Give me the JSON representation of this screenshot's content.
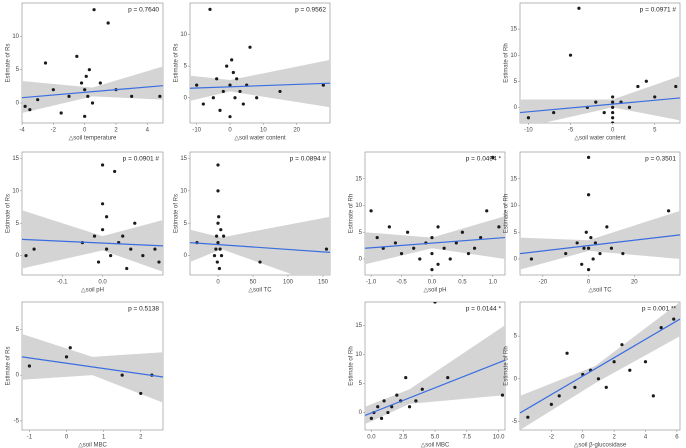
{
  "chart_data": [
    {
      "type": "scatter",
      "title": "p = 0.7640",
      "xlabel": "△soil temperature",
      "ylabel": "Estimate of Rs",
      "xlim": [
        -4,
        5
      ],
      "ylim": [
        -3,
        15
      ],
      "xticks": [
        -4,
        -2,
        0,
        2,
        4
      ],
      "yticks": [
        0,
        5,
        10
      ],
      "x": [
        -3.8,
        -3.5,
        -3,
        -2.5,
        -2,
        -1.5,
        -1,
        -0.5,
        -0.2,
        0,
        0,
        0.1,
        0.2,
        0.3,
        0.5,
        0.6,
        1,
        1.5,
        2,
        3,
        4.8
      ],
      "y": [
        -0.5,
        -1,
        0.5,
        6,
        2,
        -1.5,
        1,
        7,
        3,
        2,
        -2,
        4,
        1,
        5,
        0,
        14,
        3,
        12,
        2,
        1,
        1
      ],
      "fit": {
        "x": [
          -4,
          5
        ],
        "y": [
          0.8,
          2.6
        ]
      },
      "band": {
        "x": [
          -4,
          0.5,
          5
        ],
        "lower": [
          -1.5,
          1,
          0.5
        ],
        "upper": [
          3.3,
          2.3,
          5.5
        ]
      },
      "color": "#3a6ee0",
      "point_color": "#1a1a1a",
      "band_color": "#d4d4d4"
    },
    {
      "type": "scatter",
      "title": "p = 0.9562",
      "xlabel": "△soil water content",
      "ylabel": "Estimate of Rs",
      "xlim": [
        -12,
        30
      ],
      "ylim": [
        -4,
        15
      ],
      "xticks": [
        -10,
        0,
        10,
        20
      ],
      "yticks": [
        0,
        5,
        10
      ],
      "x": [
        -10,
        -8,
        -6,
        -5,
        -4,
        -3,
        -2,
        -1,
        0,
        0,
        0.5,
        1,
        1.5,
        2,
        3,
        4,
        5,
        6,
        8,
        15,
        28
      ],
      "y": [
        2,
        -1,
        14,
        0,
        3,
        -2,
        1,
        5,
        2,
        -3,
        6,
        4,
        0,
        3,
        1,
        -1,
        2,
        8,
        0,
        1,
        2
      ],
      "fit": {
        "x": [
          -12,
          30
        ],
        "y": [
          1.5,
          2.3
        ]
      },
      "band": {
        "x": [
          -12,
          0,
          30
        ],
        "lower": [
          -0.5,
          1,
          -1.5
        ],
        "upper": [
          3.5,
          2.8,
          6
        ]
      },
      "color": "#3a6ee0",
      "point_color": "#1a1a1a",
      "band_color": "#d4d4d4"
    },
    {
      "type": "scatter",
      "title": "p = 0.0971 #",
      "xlabel": "△soil water content",
      "ylabel": "Estimate of Rh",
      "xlim": [
        -11,
        8
      ],
      "ylim": [
        -3,
        20
      ],
      "xticks": [
        -10,
        -5,
        0,
        5
      ],
      "yticks": [
        0,
        5,
        10,
        15
      ],
      "x": [
        -10,
        -7,
        -5,
        -4,
        -3,
        -2,
        -1,
        0,
        0,
        0,
        0,
        0,
        0,
        1,
        2,
        3,
        4,
        5,
        7.5
      ],
      "y": [
        -2,
        -1,
        10,
        19,
        0,
        1,
        -1,
        2,
        1,
        0,
        -1,
        -2,
        -3,
        1,
        0,
        4,
        5,
        2,
        4
      ],
      "fit": {
        "x": [
          -11,
          8
        ],
        "y": [
          -1,
          1.8
        ]
      },
      "band": {
        "x": [
          -11,
          0,
          8
        ],
        "lower": [
          -4,
          0,
          -2.5
        ],
        "upper": [
          1.5,
          1.5,
          6
        ]
      },
      "color": "#3a6ee0",
      "point_color": "#1a1a1a",
      "band_color": "#d4d4d4"
    },
    {
      "type": "scatter",
      "title": "p = 0.0901 #",
      "xlabel": "△soil pH",
      "ylabel": "Estimate of Rs",
      "xlim": [
        -0.2,
        0.15
      ],
      "ylim": [
        -3,
        16
      ],
      "xticks": [
        -0.1,
        {
          "value": 0,
          "label": "0.0"
        }
      ],
      "yticks": [
        0,
        5,
        10,
        15
      ],
      "x": [
        -0.19,
        -0.17,
        -0.05,
        -0.02,
        -0.01,
        0,
        0,
        0,
        0.01,
        0.01,
        0.02,
        0.03,
        0.04,
        0.05,
        0.06,
        0.07,
        0.08,
        0.1,
        0.13,
        0.14
      ],
      "y": [
        0,
        1,
        2,
        3,
        -1,
        14,
        8,
        4,
        1,
        6,
        0,
        13,
        2,
        3,
        -2,
        1,
        5,
        0,
        1,
        -1
      ],
      "fit": {
        "x": [
          -0.2,
          0.15
        ],
        "y": [
          2.5,
          1.5
        ]
      },
      "band": {
        "x": [
          -0.2,
          0,
          0.15
        ],
        "lower": [
          -2,
          0.8,
          -2.5
        ],
        "upper": [
          7,
          3,
          5.5
        ]
      },
      "color": "#3a6ee0",
      "point_color": "#1a1a1a",
      "band_color": "#d4d4d4"
    },
    {
      "type": "scatter",
      "title": "p = 0.0894 #",
      "xlabel": "△soil TC",
      "ylabel": "Estimate of Rs",
      "xlim": [
        -40,
        160
      ],
      "ylim": [
        -3,
        16
      ],
      "xticks": [
        0,
        50,
        100,
        150
      ],
      "yticks": [
        0,
        5,
        10,
        15
      ],
      "x": [
        -30,
        -5,
        -3,
        -2,
        -1,
        0,
        0,
        0,
        0,
        1,
        2,
        3,
        4,
        5,
        8,
        60,
        155
      ],
      "y": [
        2,
        0,
        1,
        3,
        -1,
        14,
        10,
        5,
        2,
        6,
        -2,
        1,
        4,
        0,
        3,
        -1,
        1
      ],
      "fit": {
        "x": [
          -40,
          160
        ],
        "y": [
          2,
          0.5
        ]
      },
      "band": {
        "x": [
          -40,
          5,
          160
        ],
        "lower": [
          -1,
          1,
          -5
        ],
        "upper": [
          4,
          2.8,
          6
        ]
      },
      "color": "#3a6ee0",
      "point_color": "#1a1a1a",
      "band_color": "#d4d4d4"
    },
    {
      "type": "scatter",
      "title": "p = 0.0494 *",
      "xlabel": "△soil pH",
      "ylabel": "Estimate of Rh",
      "xlim": [
        -1.1,
        1.2
      ],
      "ylim": [
        -3,
        20
      ],
      "xticks": [
        {
          "value": -1,
          "label": "-1.0"
        },
        -0.5,
        {
          "value": 0,
          "label": "0.0"
        },
        0.5,
        {
          "value": 1,
          "label": "1.0"
        }
      ],
      "yticks": [
        0,
        5,
        10,
        15
      ],
      "x": [
        -1,
        -0.9,
        -0.8,
        -0.7,
        -0.6,
        -0.5,
        -0.4,
        -0.3,
        -0.2,
        -0.1,
        0,
        0,
        0,
        0.1,
        0.1,
        0.2,
        0.3,
        0.4,
        0.5,
        0.6,
        0.7,
        0.8,
        0.9,
        1,
        1.1
      ],
      "y": [
        9,
        4,
        2,
        6,
        3,
        1,
        5,
        2,
        0,
        3,
        -2,
        4,
        1,
        6,
        -1,
        2,
        0,
        3,
        5,
        1,
        2,
        4,
        9,
        19,
        6
      ],
      "fit": {
        "x": [
          -1.1,
          1.2
        ],
        "y": [
          2,
          4
        ]
      },
      "band": {
        "x": [
          -1.1,
          0,
          1.2
        ],
        "lower": [
          -1,
          2,
          0
        ],
        "upper": [
          5,
          4,
          8
        ]
      },
      "color": "#3a6ee0",
      "point_color": "#1a1a1a",
      "band_color": "#d4d4d4"
    },
    {
      "type": "scatter",
      "title": "p = 0.3501",
      "xlabel": "△soil TC",
      "ylabel": "Estimate of Rh",
      "xlim": [
        -30,
        40
      ],
      "ylim": [
        -3,
        20
      ],
      "xticks": [
        -20,
        0,
        20
      ],
      "yticks": [
        0,
        5,
        10,
        15
      ],
      "x": [
        -25,
        -10,
        -5,
        -3,
        -2,
        -1,
        0,
        0,
        0,
        0,
        1,
        2,
        3,
        5,
        8,
        10,
        15,
        35
      ],
      "y": [
        0,
        1,
        3,
        -1,
        2,
        5,
        19,
        12,
        2,
        -2,
        4,
        0,
        3,
        1,
        6,
        2,
        1,
        9
      ],
      "fit": {
        "x": [
          -30,
          40
        ],
        "y": [
          1,
          4.5
        ]
      },
      "band": {
        "x": [
          -30,
          0,
          40
        ],
        "lower": [
          -2,
          1.5,
          0
        ],
        "upper": [
          4,
          3.5,
          9
        ]
      },
      "color": "#3a6ee0",
      "point_color": "#1a1a1a",
      "band_color": "#d4d4d4"
    },
    {
      "type": "scatter",
      "title": "p = 0.5138",
      "xlabel": "△soil MBC",
      "ylabel": "Estimate of Rs",
      "xlim": [
        -1.2,
        2.6
      ],
      "ylim": [
        -6,
        8
      ],
      "xticks": [
        -1,
        0,
        1,
        2
      ],
      "yticks": [
        -5,
        0,
        5
      ],
      "x": [
        -1,
        0,
        0.1,
        1.5,
        2,
        2.3
      ],
      "y": [
        1,
        2,
        3,
        0,
        -2,
        0
      ],
      "fit": {
        "x": [
          -1.2,
          2.6
        ],
        "y": [
          2,
          -0.2
        ]
      },
      "band": {
        "x": [
          -1.2,
          0.7,
          2.6
        ],
        "lower": [
          -0.5,
          0,
          -3
        ],
        "upper": [
          4.5,
          2,
          2.5
        ]
      },
      "color": "#3a6ee0",
      "point_color": "#1a1a1a",
      "band_color": "#d4d4d4"
    },
    {
      "type": "scatter",
      "title": "p = 0.0144 *",
      "xlabel": "△soil MBC",
      "ylabel": "Estimate of Rh",
      "xlim": [
        -0.5,
        10.5
      ],
      "ylim": [
        -3,
        19
      ],
      "xticks": [
        {
          "value": 0,
          "label": "0.0"
        },
        2.5,
        {
          "value": 5,
          "label": "5.0"
        },
        7.5,
        {
          "value": 10,
          "label": "10.0"
        }
      ],
      "yticks": [
        0,
        5,
        10,
        15
      ],
      "x": [
        0,
        0.2,
        0.5,
        0.8,
        1,
        1.3,
        1.6,
        2,
        2.3,
        2.7,
        3,
        3.5,
        4,
        5,
        6,
        10.3
      ],
      "y": [
        -1,
        0,
        1,
        -1,
        2,
        0,
        1,
        3,
        2,
        6,
        1,
        2,
        4,
        19,
        6,
        3
      ],
      "fit": {
        "x": [
          -0.5,
          10.5
        ],
        "y": [
          -0.5,
          9
        ]
      },
      "band": {
        "x": [
          -0.5,
          3,
          10.5
        ],
        "lower": [
          -2,
          1.5,
          3
        ],
        "upper": [
          1,
          4,
          15
        ]
      },
      "color": "#3a6ee0",
      "point_color": "#1a1a1a",
      "band_color": "#d4d4d4"
    },
    {
      "type": "scatter",
      "title": "p = 0.001 **",
      "xlabel": "△soil β-glucosidase",
      "ylabel": "Estimate of Rh",
      "xlim": [
        -4,
        6.2
      ],
      "ylim": [
        -6,
        9
      ],
      "xticks": [
        -2,
        0,
        2,
        4,
        6
      ],
      "yticks": [
        -5,
        0,
        5
      ],
      "x": [
        -3.5,
        -2,
        -1.5,
        -1,
        -0.5,
        0,
        0.5,
        1,
        1.5,
        2,
        2.5,
        3,
        4,
        4.5,
        5,
        5.8
      ],
      "y": [
        -4.5,
        -3,
        -2,
        3,
        -1,
        0.5,
        1,
        0,
        -1,
        2,
        4,
        1,
        2,
        -2,
        6,
        7
      ],
      "fit": {
        "x": [
          -4,
          6.2
        ],
        "y": [
          -4,
          7
        ]
      },
      "band": {
        "x": [
          -4,
          0.8,
          6.2
        ],
        "lower": [
          -6,
          -0.5,
          5
        ],
        "upper": [
          -2,
          1.5,
          9
        ]
      },
      "color": "#3a6ee0",
      "point_color": "#1a1a1a",
      "band_color": "#d4d4d4"
    }
  ]
}
